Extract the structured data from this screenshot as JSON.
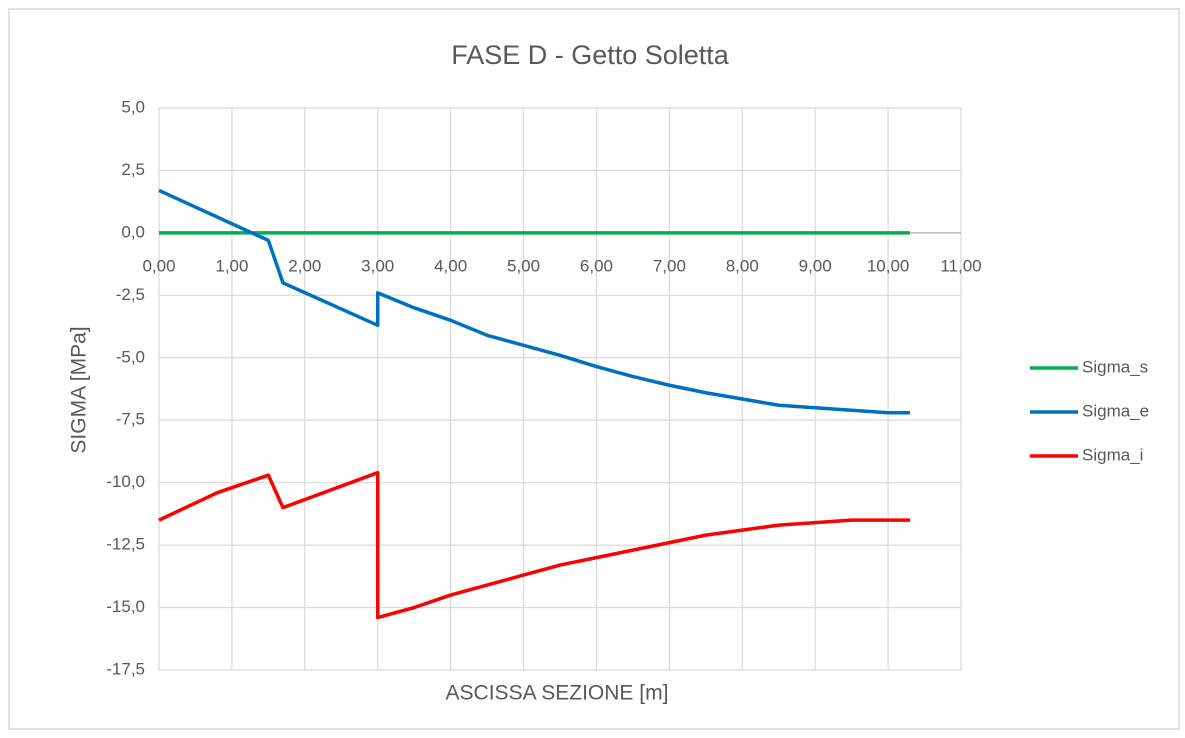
{
  "chart_data": {
    "type": "line",
    "title": "FASE D - Getto Soletta",
    "x_label": "ASCISSA SEZIONE [m]",
    "y_label": "SIGMA [MPa]",
    "xlim": [
      0,
      11
    ],
    "ylim": [
      -17.5,
      5
    ],
    "xticks": [
      {
        "value": 0,
        "label": "0,00"
      },
      {
        "value": 1,
        "label": "1,00"
      },
      {
        "value": 2,
        "label": "2,00"
      },
      {
        "value": 3,
        "label": "3,00"
      },
      {
        "value": 4,
        "label": "4,00"
      },
      {
        "value": 5,
        "label": "5,00"
      },
      {
        "value": 6,
        "label": "6,00"
      },
      {
        "value": 7,
        "label": "7,00"
      },
      {
        "value": 8,
        "label": "8,00"
      },
      {
        "value": 9,
        "label": "9,00"
      },
      {
        "value": 10,
        "label": "10,00"
      },
      {
        "value": 11,
        "label": "11,00"
      }
    ],
    "yticks": [
      {
        "value": 5,
        "label": "5,0"
      },
      {
        "value": 2.5,
        "label": "2,5"
      },
      {
        "value": 0,
        "label": "0,0"
      },
      {
        "value": -2.5,
        "label": "-2,5"
      },
      {
        "value": -5,
        "label": "-5,0"
      },
      {
        "value": -7.5,
        "label": "-7,5"
      },
      {
        "value": -10,
        "label": "-10,0"
      },
      {
        "value": -12.5,
        "label": "-12,5"
      },
      {
        "value": -15,
        "label": "-15,0"
      },
      {
        "value": -17.5,
        "label": "-17,5"
      }
    ],
    "grid": true,
    "legend": "right",
    "series": [
      {
        "name": "Sigma_s",
        "color": "#00b050",
        "x": [
          0,
          10.3
        ],
        "values": [
          0,
          0
        ]
      },
      {
        "name": "Sigma_e",
        "color": "#0070c0",
        "x": [
          0,
          1.5,
          1.7,
          3.0,
          3.0,
          3.5,
          4.0,
          4.5,
          5.0,
          5.5,
          6.0,
          6.5,
          7.0,
          7.5,
          8.0,
          8.5,
          9.0,
          9.5,
          10.0,
          10.3
        ],
        "values": [
          1.7,
          -0.3,
          -2.0,
          -3.7,
          -2.4,
          -3.0,
          -3.5,
          -4.1,
          -4.5,
          -4.9,
          -5.35,
          -5.75,
          -6.1,
          -6.4,
          -6.65,
          -6.9,
          -7.0,
          -7.1,
          -7.2,
          -7.2
        ]
      },
      {
        "name": "Sigma_i",
        "color": "#ff0000",
        "x": [
          0,
          0.8,
          1.5,
          1.7,
          3.0,
          3.0,
          3.5,
          4.0,
          4.5,
          5.0,
          5.5,
          6.0,
          6.5,
          7.0,
          7.5,
          8.0,
          8.5,
          9.0,
          9.5,
          10.3
        ],
        "values": [
          -11.5,
          -10.4,
          -9.7,
          -11.0,
          -9.6,
          -15.4,
          -15.0,
          -14.5,
          -14.1,
          -13.7,
          -13.3,
          -13.0,
          -12.7,
          -12.4,
          -12.1,
          -11.9,
          -11.7,
          -11.6,
          -11.5,
          -11.5
        ]
      }
    ]
  }
}
